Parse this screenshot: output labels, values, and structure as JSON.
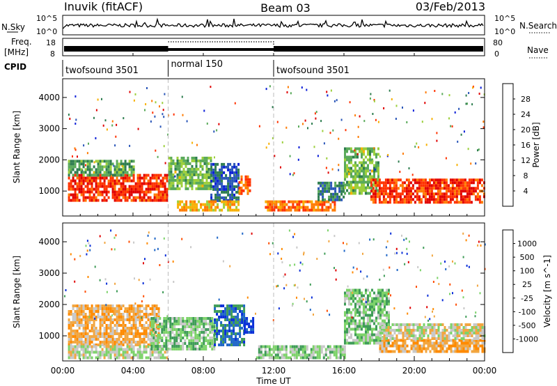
{
  "header": {
    "station": "Inuvik (fitACF)",
    "beam": "Beam 03",
    "date": "03/Feb/2013"
  },
  "nsky_panel": {
    "left_label": "N.Sky",
    "right_label": "N.Search",
    "left_ticks": [
      "10^5",
      "10^0"
    ],
    "right_ticks": [
      "10^5",
      "10^0"
    ]
  },
  "freq_panel": {
    "left_label_top": "Freq.",
    "left_label_bottom": "[MHz]",
    "right_label": "Nave",
    "left_ticks": [
      "18",
      "8"
    ],
    "right_ticks": [
      "80",
      "0"
    ]
  },
  "cpid": {
    "label": "CPID",
    "segments": [
      {
        "name": "twofsound 3501",
        "start_h": 0,
        "end_h": 6
      },
      {
        "name": "normal 150",
        "start_h": 6,
        "end_h": 12
      },
      {
        "name": "twofsound 3501",
        "start_h": 12,
        "end_h": 24
      }
    ]
  },
  "colors": {
    "power": [
      "#0a1ed8",
      "#2a56b8",
      "#2e7d4f",
      "#5aaa5a",
      "#9ccf3c",
      "#f7b000",
      "#ff7b00",
      "#ff3300",
      "#e00000"
    ],
    "velocity": [
      "#e00000",
      "#ff4d00",
      "#ff8a00",
      "#f2a640",
      "#c8c8c8",
      "#7dd36a",
      "#3f9c58",
      "#1f66c7",
      "#0a2fd8"
    ]
  },
  "chart_data": [
    {
      "type": "heatmap",
      "name": "Power",
      "ylabel": "Slant Range [km]",
      "y_ticks": [
        "1000",
        "2000",
        "3000",
        "4000"
      ],
      "ylim": [
        200,
        4600
      ],
      "colorbar": {
        "label": "Power [dB]",
        "ticks": [
          "4",
          "8",
          "12",
          "16",
          "20",
          "24",
          "28"
        ],
        "range": [
          0,
          32
        ]
      },
      "regions": [
        {
          "t0": 0.3,
          "t1": 6.0,
          "r0": 700,
          "r1": 1550,
          "value": 27
        },
        {
          "t0": 0.3,
          "t1": 4.0,
          "r0": 1550,
          "r1": 2000,
          "value": 12
        },
        {
          "t0": 6.0,
          "t1": 8.4,
          "r0": 1100,
          "r1": 2100,
          "value": 14
        },
        {
          "t0": 8.4,
          "t1": 10.0,
          "r0": 700,
          "r1": 1900,
          "value": 6
        },
        {
          "t0": 6.5,
          "t1": 10.0,
          "r0": 350,
          "r1": 700,
          "value": 20
        },
        {
          "t0": 10.0,
          "t1": 10.6,
          "r0": 900,
          "r1": 1500,
          "value": 24
        },
        {
          "t0": 11.5,
          "t1": 15.5,
          "r0": 350,
          "r1": 700,
          "value": 24
        },
        {
          "t0": 14.5,
          "t1": 16.0,
          "r0": 700,
          "r1": 1300,
          "value": 8
        },
        {
          "t0": 16.0,
          "t1": 18.0,
          "r0": 900,
          "r1": 2400,
          "value": 14
        },
        {
          "t0": 17.5,
          "t1": 24.0,
          "r0": 650,
          "r1": 1400,
          "value": 27
        }
      ]
    },
    {
      "type": "heatmap",
      "name": "Velocity",
      "xlabel": "Time UT",
      "x_ticks": [
        "00:00",
        "04:00",
        "08:00",
        "12:00",
        "16:00",
        "20:00",
        "00:00"
      ],
      "xlim": [
        0,
        24
      ],
      "ylabel": "Slant Range [km]",
      "y_ticks": [
        "1000",
        "2000",
        "3000",
        "4000"
      ],
      "ylim": [
        200,
        4600
      ],
      "colorbar": {
        "label": "Velocity [m s^-1]",
        "ticks": [
          "1000",
          "500",
          "100",
          "25",
          "-25",
          "-100",
          "-500",
          "-1000"
        ],
        "range": [
          -1250,
          1250
        ]
      },
      "regions": [
        {
          "t0": 0.3,
          "t1": 5.5,
          "r0": 700,
          "r1": 2000,
          "value": -300
        },
        {
          "t0": 0.3,
          "t1": 6.0,
          "r0": 300,
          "r1": 700,
          "value": 60
        },
        {
          "t0": 5.0,
          "t1": 8.6,
          "r0": 600,
          "r1": 1600,
          "value": 300
        },
        {
          "t0": 8.6,
          "t1": 10.3,
          "r0": 700,
          "r1": 2000,
          "value": 800
        },
        {
          "t0": 10.3,
          "t1": 10.8,
          "r0": 1100,
          "r1": 1600,
          "value": 1100
        },
        {
          "t0": 11.0,
          "t1": 16.0,
          "r0": 300,
          "r1": 700,
          "value": 200
        },
        {
          "t0": 16.0,
          "t1": 18.5,
          "r0": 800,
          "r1": 2500,
          "value": 300
        },
        {
          "t0": 18.0,
          "t1": 24.0,
          "r0": 500,
          "r1": 900,
          "value": -300
        },
        {
          "t0": 18.0,
          "t1": 24.0,
          "r0": 900,
          "r1": 1400,
          "value": 0
        }
      ]
    }
  ]
}
